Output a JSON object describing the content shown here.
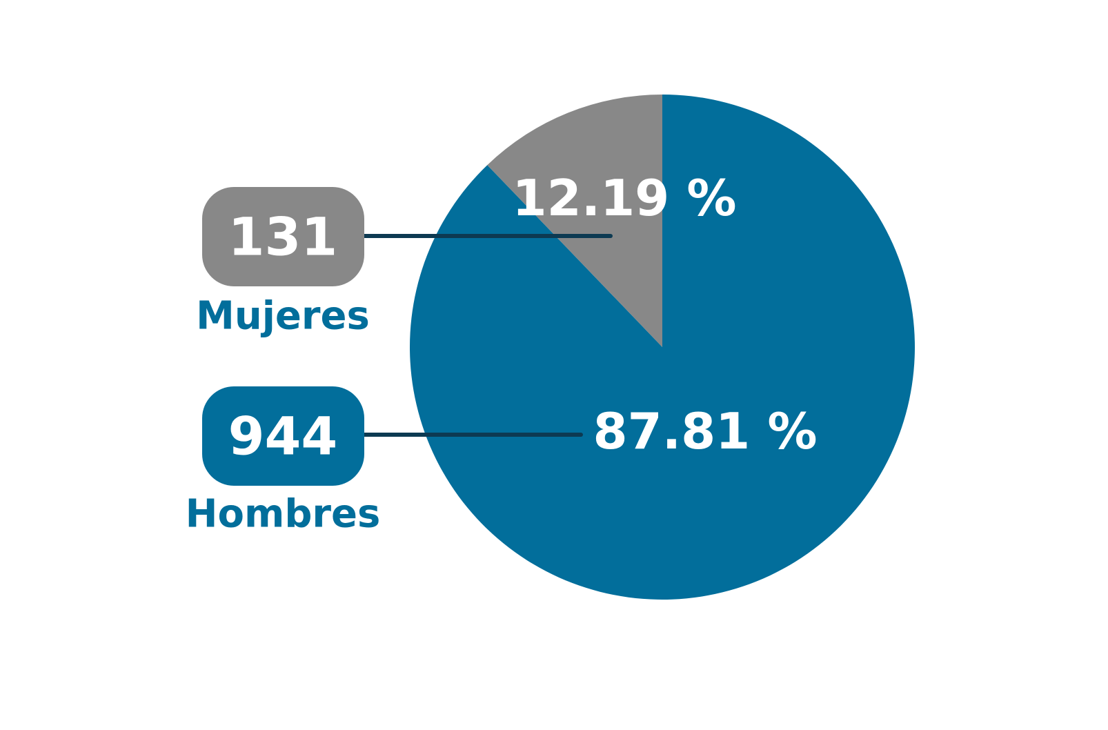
{
  "chart_data": {
    "type": "pie",
    "categories": [
      "Mujeres",
      "Hombres"
    ],
    "values": [
      12.19,
      87.81
    ],
    "value_labels": [
      "12.19 %",
      "87.81 %"
    ],
    "counts": [
      131,
      944
    ],
    "colors": [
      "#888888",
      "#026e9b"
    ]
  }
}
